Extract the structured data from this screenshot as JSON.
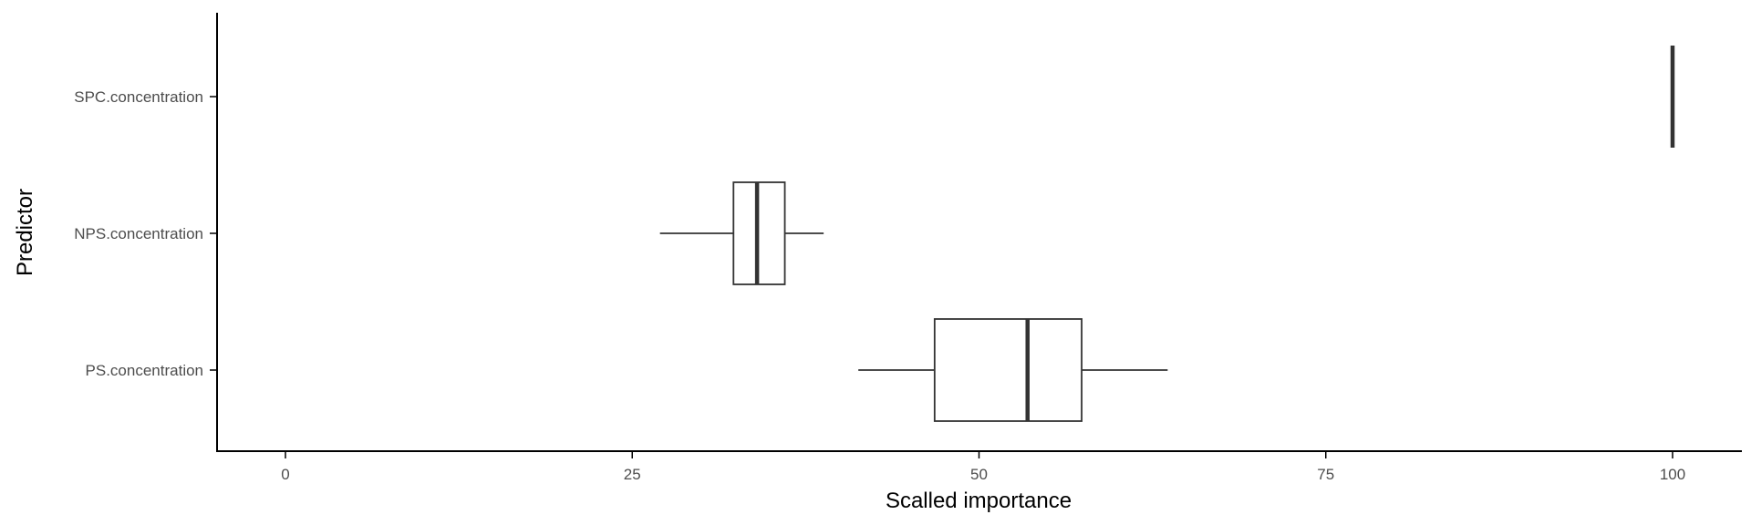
{
  "chart_data": {
    "type": "boxplot",
    "orientation": "horizontal",
    "title": "",
    "xlabel": "Scalled importance",
    "ylabel": "Predictor",
    "xlim": [
      -2.5,
      105
    ],
    "x_ticks": [
      0,
      25,
      50,
      75,
      100
    ],
    "x_tick_labels": [
      "0",
      "25",
      "50",
      "75",
      "100"
    ],
    "categories": [
      "SPC.concentration",
      "NPS.concentration",
      "PS.concentration"
    ],
    "boxes": [
      {
        "name": "SPC.concentration",
        "min": 100,
        "q1": 100,
        "median": 100,
        "q3": 100,
        "max": 100
      },
      {
        "name": "NPS.concentration",
        "min": 27.0,
        "q1": 32.3,
        "median": 34.0,
        "q3": 36.0,
        "max": 38.8
      },
      {
        "name": "PS.concentration",
        "min": 41.3,
        "q1": 46.8,
        "median": 53.5,
        "q3": 57.4,
        "max": 63.6
      }
    ],
    "grid": false,
    "legend": "none",
    "colors": {
      "box_fill": "#ffffff",
      "box_stroke": "#333333",
      "axis": "#000000",
      "tick_text": "#4d4d4d"
    }
  }
}
